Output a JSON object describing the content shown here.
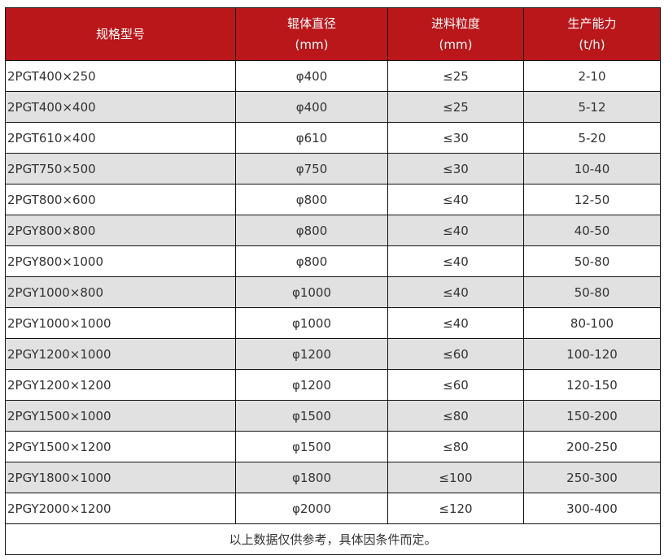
{
  "colors": {
    "header_bg": "#b9171a",
    "stripe_bg": "#e1e1e1"
  },
  "headers": [
    {
      "line1": "规格型号",
      "line2": ""
    },
    {
      "line1": "辊体直径",
      "line2": "(mm)"
    },
    {
      "line1": "进料粒度",
      "line2": "(mm)"
    },
    {
      "line1": "生产能力",
      "line2": "(t/h)"
    }
  ],
  "rows": [
    [
      "2PGT400×250",
      "φ400",
      "≤25",
      "2-10"
    ],
    [
      "2PGT400×400",
      "φ400",
      "≤25",
      "5-12"
    ],
    [
      "2PGT610×400",
      "φ610",
      "≤30",
      "5-20"
    ],
    [
      "2PGT750×500",
      "φ750",
      "≤30",
      "10-40"
    ],
    [
      "2PGT800×600",
      "φ800",
      "≤40",
      "12-50"
    ],
    [
      "2PGY800×800",
      "φ800",
      "≤40",
      "40-50"
    ],
    [
      "2PGY800×1000",
      "φ800",
      "≤40",
      "50-80"
    ],
    [
      "2PGY1000×800",
      "φ1000",
      "≤40",
      "50-80"
    ],
    [
      "2PGY1000×1000",
      "φ1000",
      "≤40",
      "80-100"
    ],
    [
      "2PGY1200×1000",
      "φ1200",
      "≤60",
      "100-120"
    ],
    [
      "2PGY1200×1200",
      "φ1200",
      "≤60",
      "120-150"
    ],
    [
      "2PGY1500×1000",
      "φ1500",
      "≤80",
      "150-200"
    ],
    [
      "2PGY1500×1200",
      "φ1500",
      "≤80",
      "200-250"
    ],
    [
      "2PGY1800×1000",
      "φ1800",
      "≤100",
      "250-300"
    ],
    [
      "2PGY2000×1200",
      "φ2000",
      "≤120",
      "300-400"
    ]
  ],
  "footer": "以上数据仅供参考，具体因条件而定。"
}
